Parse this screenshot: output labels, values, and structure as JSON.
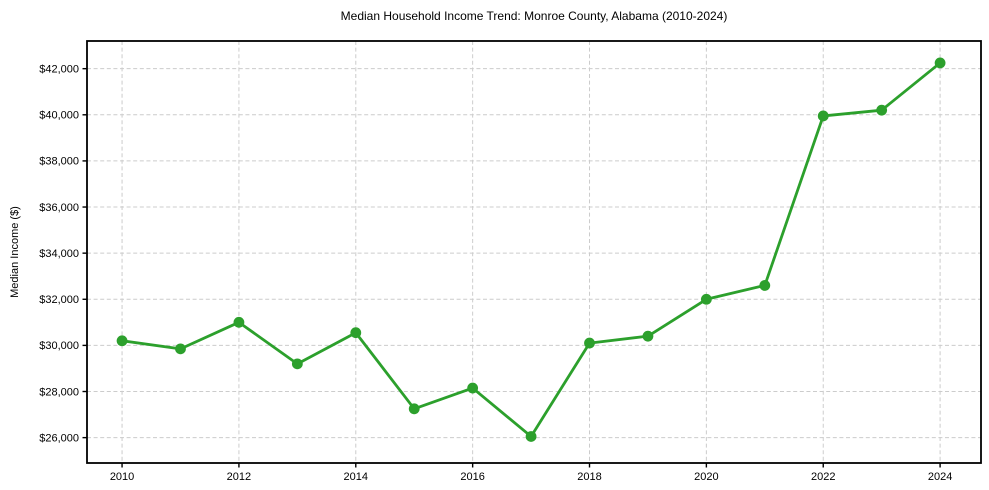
{
  "chart_data": {
    "type": "line",
    "title": "Median Household Income Trend: Monroe County, Alabama (2010-2024)",
    "xlabel": "",
    "ylabel": "Median Income ($)",
    "series": [
      {
        "name": "Median Household Income",
        "x": [
          2010,
          2011,
          2012,
          2013,
          2014,
          2015,
          2016,
          2017,
          2018,
          2019,
          2020,
          2021,
          2022,
          2023,
          2024
        ],
        "values": [
          30200,
          29850,
          31000,
          29200,
          30550,
          27250,
          28150,
          26050,
          30100,
          30400,
          32000,
          32600,
          39950,
          40200,
          42250
        ]
      }
    ],
    "line_color": "#2ca02c",
    "marker": "circle",
    "grid": true,
    "grid_color": "#cccccc",
    "spine_color": "#000000",
    "xlim": [
      2009.4,
      2024.7
    ],
    "ylim": [
      24900,
      43200
    ],
    "x_ticks": [
      2010,
      2012,
      2014,
      2016,
      2018,
      2020,
      2022,
      2024
    ],
    "x_tick_labels": [
      "2010",
      "2012",
      "2014",
      "2016",
      "2018",
      "2020",
      "2022",
      "2024"
    ],
    "y_ticks": [
      26000,
      28000,
      30000,
      32000,
      34000,
      36000,
      38000,
      40000,
      42000
    ],
    "y_tick_labels": [
      "$26,000",
      "$28,000",
      "$30,000",
      "$32,000",
      "$34,000",
      "$36,000",
      "$38,000",
      "$40,000",
      "$42,000"
    ],
    "legend": null
  }
}
